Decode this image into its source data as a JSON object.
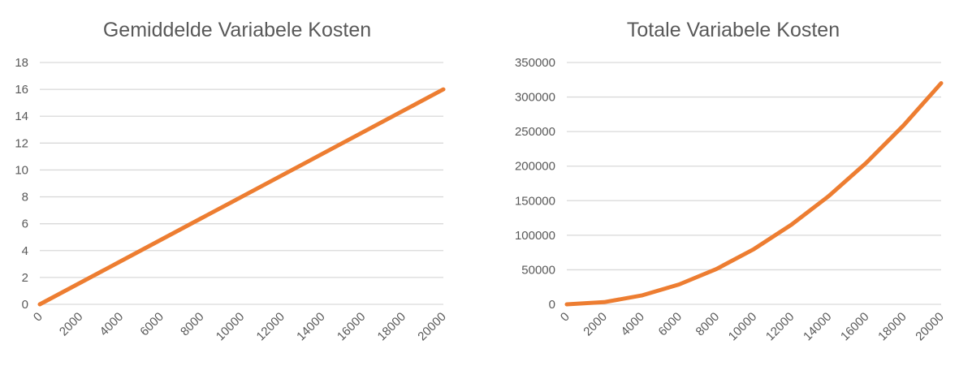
{
  "colors": {
    "series": "#ED7D31",
    "gridline": "#D9D9D9",
    "text": "#595959"
  },
  "chart_data": [
    {
      "type": "line",
      "title": "Gemiddelde Variabele Kosten",
      "xlabel": "",
      "ylabel": "",
      "grid": true,
      "legend": "none",
      "x": [
        0,
        2000,
        4000,
        6000,
        8000,
        10000,
        12000,
        14000,
        16000,
        18000,
        20000
      ],
      "series": [
        {
          "values": [
            0,
            1.6,
            3.2,
            4.8,
            6.4,
            8,
            9.6,
            11.2,
            12.8,
            14.4,
            16
          ]
        }
      ],
      "xticks": [
        "0",
        "2000",
        "4000",
        "6000",
        "8000",
        "10000",
        "12000",
        "14000",
        "16000",
        "18000",
        "20000"
      ],
      "yticks": [
        "0",
        "2",
        "4",
        "6",
        "8",
        "10",
        "12",
        "14",
        "16",
        "18"
      ],
      "ylim": [
        0,
        18
      ]
    },
    {
      "type": "line",
      "title": "Totale Variabele Kosten",
      "xlabel": "",
      "ylabel": "",
      "grid": true,
      "legend": "none",
      "x": [
        0,
        2000,
        4000,
        6000,
        8000,
        10000,
        12000,
        14000,
        16000,
        18000,
        20000
      ],
      "series": [
        {
          "values": [
            0,
            3200,
            12800,
            28800,
            51200,
            80000,
            115200,
            156800,
            204800,
            259200,
            320000
          ]
        }
      ],
      "xticks": [
        "0",
        "2000",
        "4000",
        "6000",
        "8000",
        "10000",
        "12000",
        "14000",
        "16000",
        "18000",
        "20000"
      ],
      "yticks": [
        "0",
        "50000",
        "100000",
        "150000",
        "200000",
        "250000",
        "300000",
        "350000"
      ],
      "ylim": [
        0,
        350000
      ]
    }
  ]
}
